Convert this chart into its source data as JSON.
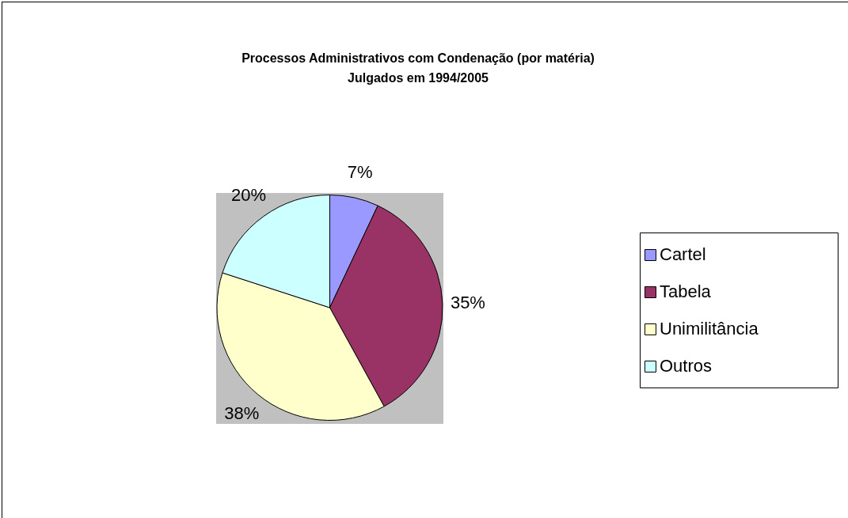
{
  "chart_data": {
    "type": "pie",
    "title": "Processos Administrativos com Condenação (por matéria)\nJulgados em 1994/2005",
    "categories": [
      "Cartel",
      "Tabela",
      "Unimilitância",
      "Outros"
    ],
    "values": [
      7,
      35,
      38,
      20
    ],
    "colors": [
      "#9999ff",
      "#993366",
      "#ffffcc",
      "#ccffff"
    ],
    "value_labels": [
      "7%",
      "35%",
      "38%",
      "20%"
    ],
    "legend": "right"
  }
}
